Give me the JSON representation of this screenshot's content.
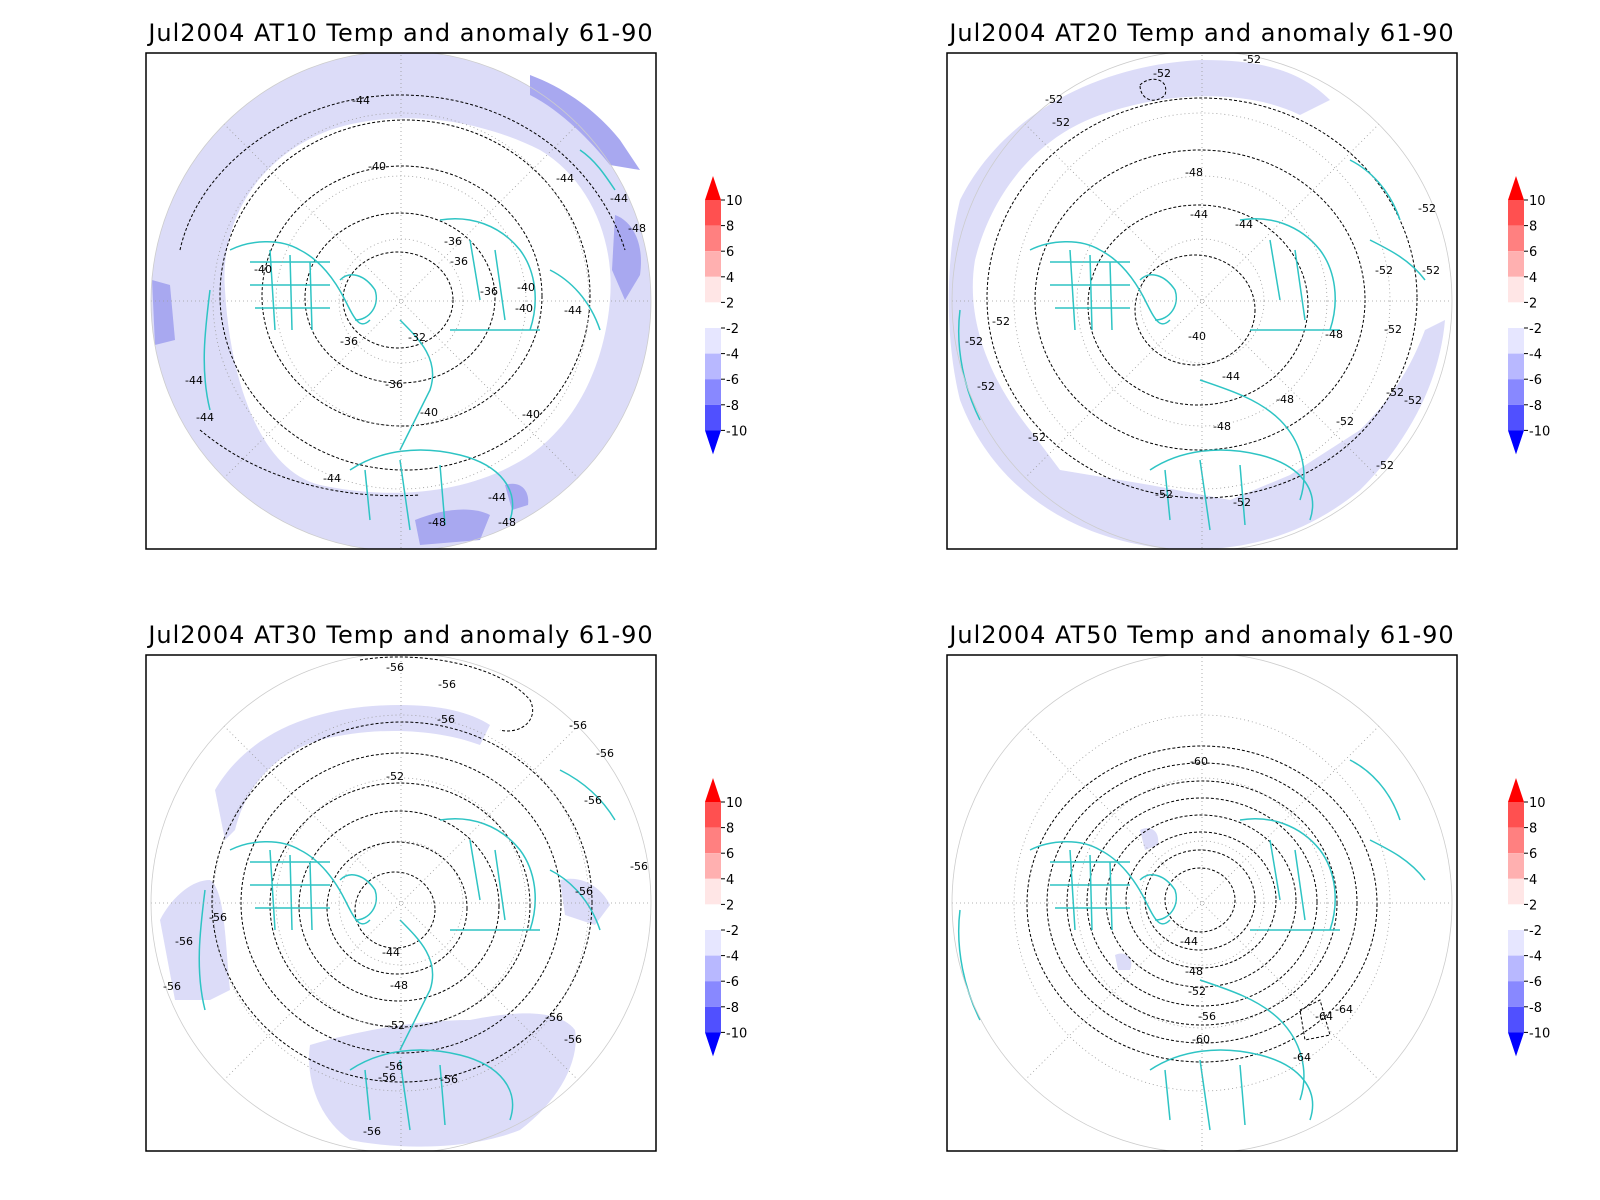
{
  "panels": [
    {
      "id": "at10",
      "title": "Jul2004 AT10 Temp and anomaly 61-90",
      "contour_labels": [
        "-44",
        "-40",
        "-36",
        "-36",
        "-32",
        "-36",
        "-40",
        "-44",
        "-44",
        "-44",
        "-48",
        "-48",
        "-40",
        "-40",
        "-36",
        "-40",
        "-40",
        "-44",
        "-44",
        "-48",
        "-36",
        "-44",
        "-44"
      ]
    },
    {
      "id": "at20",
      "title": "Jul2004 AT20 Temp and anomaly 61-90",
      "contour_labels": [
        "-52",
        "-52",
        "-52",
        "-48",
        "-44",
        "-44",
        "-40",
        "-44",
        "-48",
        "-48",
        "-52",
        "-52",
        "-52",
        "-52",
        "-52",
        "-52",
        "-52",
        "-52",
        "-52",
        "-52",
        "-52",
        "-52",
        "-48",
        "-52",
        "-52",
        "-52"
      ]
    },
    {
      "id": "at30",
      "title": "Jul2004 AT30 Temp and anomaly 61-90",
      "contour_labels": [
        "-56",
        "-56",
        "-56",
        "-56",
        "-56",
        "-56",
        "-52",
        "-56",
        "-56",
        "-56",
        "-56",
        "-44",
        "-48",
        "-52",
        "-56",
        "-56",
        "-56",
        "-56",
        "-56",
        "-56",
        "-56"
      ]
    },
    {
      "id": "at50",
      "title": "Jul2004 AT50 Temp and anomaly 61-90",
      "contour_labels": [
        "-60",
        "-44",
        "-48",
        "-52",
        "-56",
        "-60",
        "-64",
        "-64",
        "-64"
      ]
    }
  ],
  "colorbar": {
    "levels": [
      "10",
      "8",
      "6",
      "4",
      "2",
      "-2",
      "-4",
      "-6",
      "-8",
      "-10"
    ],
    "colors": [
      "#ff0000",
      "#ff5050",
      "#ff8080",
      "#ffb0b0",
      "#ffe6e6",
      "#ffffff",
      "#e6e6ff",
      "#b8b8ff",
      "#8888ff",
      "#5050ff",
      "#0000ff"
    ]
  },
  "colors": {
    "coastline": "#2ec4c4",
    "anomaly_light": "#dcdcf8",
    "anomaly_medium": "#a8a8f0",
    "contour": "#000000",
    "grid": "#9a9a9a"
  }
}
